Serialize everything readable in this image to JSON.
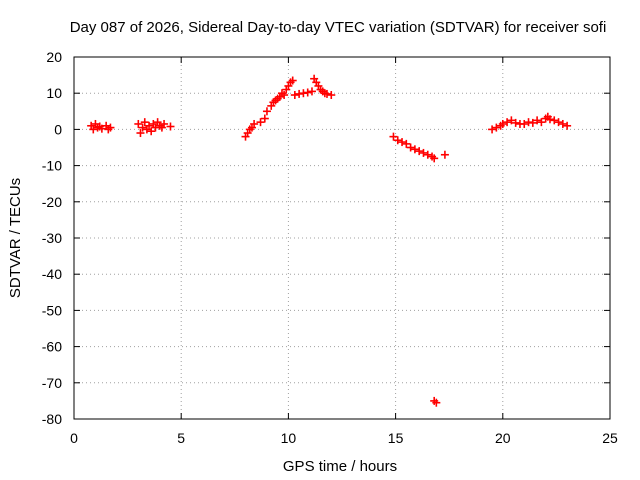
{
  "chart_data": {
    "type": "scatter",
    "title": "Day 087 of 2026, Sidereal Day-to-day VTEC variation (SDTVAR) for receiver sofi",
    "xlabel": "GPS time / hours",
    "ylabel": "SDTVAR / TECUs",
    "xlim": [
      0,
      25
    ],
    "ylim": [
      -80,
      20
    ],
    "xticks": [
      0,
      5,
      10,
      15,
      20,
      25
    ],
    "yticks": [
      20,
      10,
      0,
      -10,
      -20,
      -30,
      -40,
      -50,
      -60,
      -70,
      -80
    ],
    "grid": true,
    "marker": "plus",
    "color": "#ff0000",
    "series": [
      {
        "name": "SDTVAR",
        "points": [
          [
            0.8,
            1.0
          ],
          [
            0.9,
            0.0
          ],
          [
            1.0,
            1.5
          ],
          [
            1.1,
            0.5
          ],
          [
            1.2,
            0.8
          ],
          [
            1.3,
            0.2
          ],
          [
            1.5,
            1.0
          ],
          [
            1.6,
            0.0
          ],
          [
            1.7,
            0.5
          ],
          [
            3.0,
            1.5
          ],
          [
            3.1,
            -1.0
          ],
          [
            3.2,
            0.5
          ],
          [
            3.3,
            2.0
          ],
          [
            3.4,
            0.0
          ],
          [
            3.5,
            1.0
          ],
          [
            3.6,
            -0.5
          ],
          [
            3.7,
            1.5
          ],
          [
            3.8,
            0.5
          ],
          [
            3.9,
            2.0
          ],
          [
            4.0,
            1.0
          ],
          [
            4.1,
            0.5
          ],
          [
            4.2,
            1.5
          ],
          [
            4.5,
            0.8
          ],
          [
            8.0,
            -2.0
          ],
          [
            8.1,
            -1.0
          ],
          [
            8.2,
            0.0
          ],
          [
            8.3,
            0.5
          ],
          [
            8.4,
            1.5
          ],
          [
            8.7,
            2.0
          ],
          [
            8.9,
            3.0
          ],
          [
            9.0,
            5.0
          ],
          [
            9.2,
            6.5
          ],
          [
            9.3,
            7.5
          ],
          [
            9.4,
            8.0
          ],
          [
            9.5,
            8.5
          ],
          [
            9.6,
            9.0
          ],
          [
            9.7,
            10.0
          ],
          [
            9.8,
            9.5
          ],
          [
            9.9,
            11.0
          ],
          [
            10.0,
            12.0
          ],
          [
            10.1,
            13.0
          ],
          [
            10.2,
            13.5
          ],
          [
            10.3,
            9.5
          ],
          [
            10.5,
            9.8
          ],
          [
            10.7,
            10.0
          ],
          [
            10.9,
            10.2
          ],
          [
            11.1,
            10.5
          ],
          [
            11.2,
            14.0
          ],
          [
            11.3,
            13.0
          ],
          [
            11.4,
            12.0
          ],
          [
            11.5,
            11.0
          ],
          [
            11.6,
            10.5
          ],
          [
            11.7,
            10.0
          ],
          [
            11.8,
            9.8
          ],
          [
            12.0,
            9.5
          ],
          [
            14.9,
            -2.0
          ],
          [
            15.1,
            -3.0
          ],
          [
            15.3,
            -3.5
          ],
          [
            15.5,
            -4.0
          ],
          [
            15.7,
            -5.0
          ],
          [
            15.9,
            -5.5
          ],
          [
            16.1,
            -6.0
          ],
          [
            16.3,
            -6.5
          ],
          [
            16.5,
            -7.0
          ],
          [
            16.7,
            -7.5
          ],
          [
            16.8,
            -8.0
          ],
          [
            17.3,
            -7.0
          ],
          [
            16.8,
            -75.0
          ],
          [
            16.9,
            -75.5
          ],
          [
            19.5,
            0.0
          ],
          [
            19.7,
            0.5
          ],
          [
            19.9,
            1.0
          ],
          [
            20.0,
            1.5
          ],
          [
            20.2,
            2.0
          ],
          [
            20.4,
            2.5
          ],
          [
            20.6,
            1.8
          ],
          [
            20.8,
            1.5
          ],
          [
            21.0,
            1.5
          ],
          [
            21.2,
            2.0
          ],
          [
            21.4,
            1.8
          ],
          [
            21.6,
            2.5
          ],
          [
            21.8,
            2.0
          ],
          [
            22.0,
            3.0
          ],
          [
            22.1,
            3.5
          ],
          [
            22.2,
            2.8
          ],
          [
            22.4,
            2.5
          ],
          [
            22.6,
            2.0
          ],
          [
            22.8,
            1.5
          ],
          [
            23.0,
            1.0
          ]
        ]
      }
    ]
  }
}
